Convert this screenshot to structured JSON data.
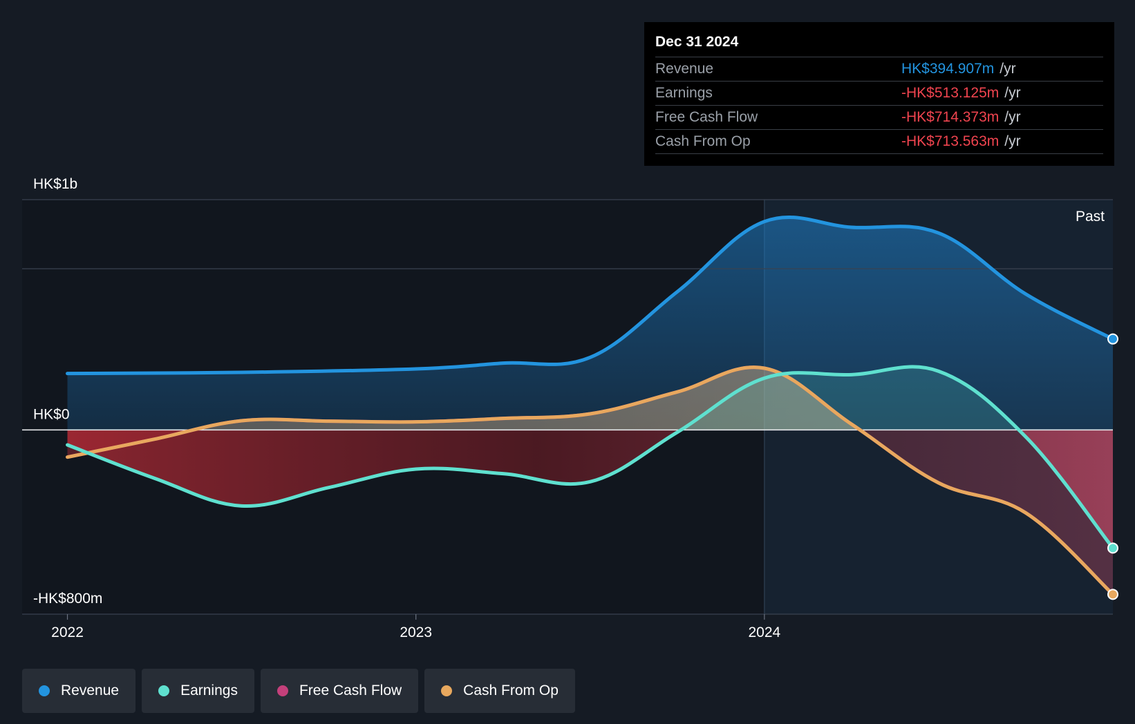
{
  "tooltip": {
    "date": "Dec 31 2024",
    "rows": [
      {
        "label": "Revenue",
        "value": "HK$394.907m",
        "unit": "/yr",
        "color": "#2394df"
      },
      {
        "label": "Earnings",
        "value": "-HK$513.125m",
        "unit": "/yr",
        "color": "#f0444f"
      },
      {
        "label": "Free Cash Flow",
        "value": "-HK$714.373m",
        "unit": "/yr",
        "color": "#f0444f"
      },
      {
        "label": "Cash From Op",
        "value": "-HK$713.563m",
        "unit": "/yr",
        "color": "#f0444f"
      }
    ]
  },
  "legend": [
    {
      "label": "Revenue",
      "color": "#2394df"
    },
    {
      "label": "Earnings",
      "color": "#5fe0cf"
    },
    {
      "label": "Free Cash Flow",
      "color": "#c4407b"
    },
    {
      "label": "Cash From Op",
      "color": "#e8a85e"
    }
  ],
  "chart_data": {
    "type": "line",
    "y_tick_labels": [
      {
        "value": 1000,
        "label": "HK$1b"
      },
      {
        "value": 0,
        "label": "HK$0"
      },
      {
        "value": -800,
        "label": "-HK$800m"
      }
    ],
    "ylim": [
      -800,
      1000
    ],
    "x_ticks": [
      {
        "value": 2022.0,
        "label": "2022"
      },
      {
        "value": 2023.0,
        "label": "2023"
      },
      {
        "value": 2024.0,
        "label": "2024"
      }
    ],
    "xlim": [
      2021.87,
      2025.0
    ],
    "past_label": "Past",
    "past_region_start": 2024.0,
    "grid": true,
    "series": [
      {
        "name": "Revenue",
        "color": "#2394df",
        "x": [
          2022.0,
          2022.5,
          2023.0,
          2023.25,
          2023.5,
          2023.75,
          2024.0,
          2024.25,
          2024.5,
          2024.75,
          2025.0
        ],
        "values": [
          245,
          250,
          265,
          290,
          315,
          600,
          905,
          880,
          855,
          590,
          395
        ]
      },
      {
        "name": "Earnings",
        "color": "#5fe0cf",
        "x": [
          2022.0,
          2022.25,
          2022.5,
          2022.75,
          2023.0,
          2023.25,
          2023.5,
          2023.75,
          2024.0,
          2024.25,
          2024.5,
          2024.75,
          2025.0
        ],
        "values": [
          -65,
          -210,
          -330,
          -250,
          -170,
          -190,
          -225,
          -10,
          225,
          240,
          255,
          -30,
          -513
        ]
      },
      {
        "name": "Free Cash Flow",
        "color": "#c4407b",
        "x": [
          2022.0,
          2022.25,
          2022.5,
          2022.75,
          2023.0,
          2023.25,
          2023.5,
          2023.75,
          2024.0,
          2024.25,
          2024.5,
          2024.75,
          2025.0
        ],
        "values": [
          -118,
          -40,
          40,
          38,
          35,
          50,
          70,
          165,
          268,
          25,
          -230,
          -360,
          -714
        ]
      },
      {
        "name": "Cash From Op",
        "color": "#e8a85e",
        "x": [
          2022.0,
          2022.25,
          2022.5,
          2022.75,
          2023.0,
          2023.25,
          2023.5,
          2023.75,
          2024.0,
          2024.25,
          2024.5,
          2024.75,
          2025.0
        ],
        "values": [
          -118,
          -40,
          40,
          38,
          35,
          50,
          70,
          165,
          268,
          25,
          -230,
          -360,
          -714
        ]
      }
    ]
  }
}
